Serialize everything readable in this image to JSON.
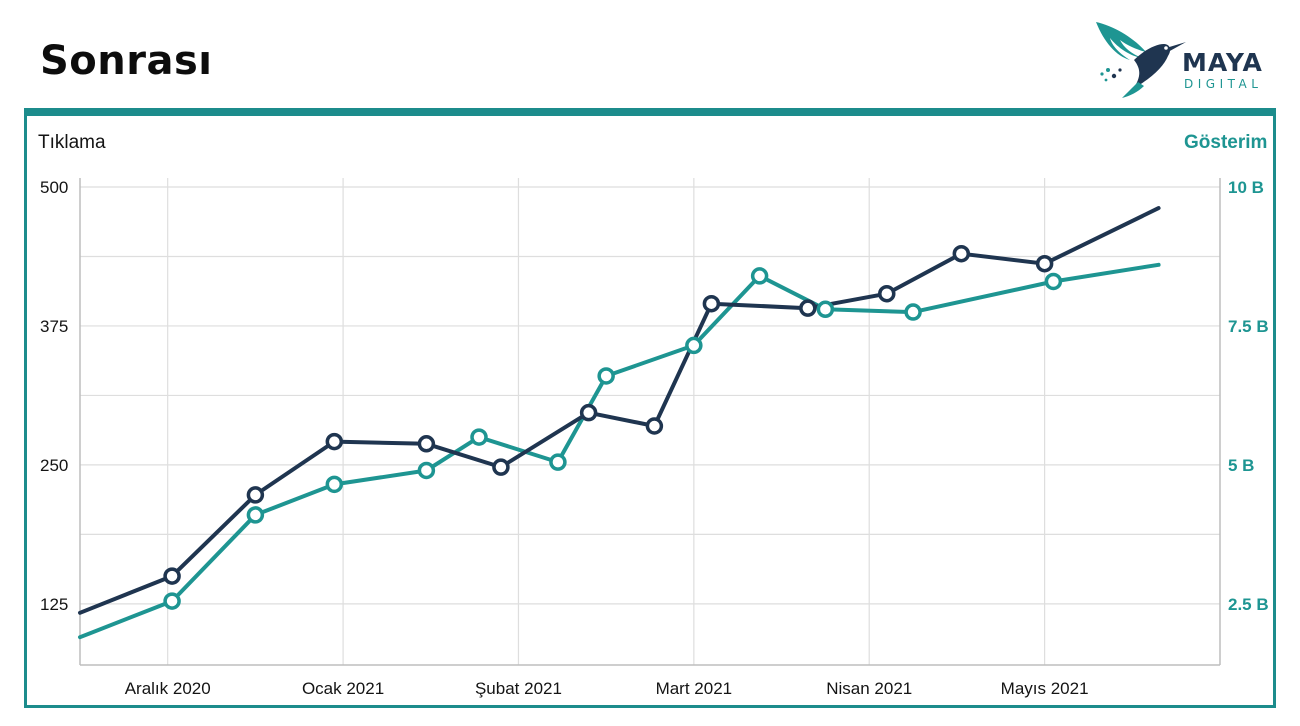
{
  "title": "Sonrası",
  "logo": {
    "name": "MAYA",
    "sub": "DIGITAL",
    "icon": "hummingbird-icon"
  },
  "colors": {
    "clicks": "#1f3550",
    "impressions": "#1e9592",
    "frame": "#1c8c8c",
    "grid": "#dedede"
  },
  "chart_data": {
    "type": "line",
    "ylabel": "Tıklama",
    "y2label": "Gösterim",
    "ylim": [
      70,
      500
    ],
    "y2lim": [
      1.4,
      10
    ],
    "yticks": [
      125,
      250,
      375,
      500
    ],
    "yticklabels": [
      "125",
      "250",
      "375",
      "500"
    ],
    "y2ticks": [
      2.5,
      5,
      7.5,
      10
    ],
    "y2ticklabels": [
      "2.5 B",
      "5 B",
      "7.5 B",
      "10 B"
    ],
    "xticklabels": [
      "Aralık 2020",
      "Ocak 2021",
      "Şubat 2021",
      "Mart 2021",
      "Nisan 2021",
      "Mayıs 2021"
    ],
    "xtickpos": [
      1,
      3,
      5,
      7,
      9,
      11
    ],
    "xlim": [
      0,
      13
    ],
    "grid": true,
    "series": [
      {
        "name": "Tıklama",
        "axis": "left",
        "x": [
          0,
          1.05,
          2,
          2.9,
          3.95,
          4.8,
          5.8,
          6.55,
          7.2,
          8.3,
          9.2,
          10.05,
          11,
          12.3
        ],
        "y": [
          117,
          150,
          223,
          271,
          269,
          248,
          297,
          285,
          395,
          391,
          404,
          440,
          431,
          481
        ],
        "markers": [
          false,
          true,
          true,
          true,
          true,
          true,
          true,
          true,
          true,
          true,
          true,
          true,
          true,
          false
        ]
      },
      {
        "name": "Gösterim",
        "axis": "right",
        "x": [
          0,
          1.05,
          2,
          2.9,
          3.95,
          4.55,
          5.45,
          6.0,
          7.0,
          7.75,
          8.5,
          9.5,
          11.1,
          12.3
        ],
        "y": [
          1.9,
          2.55,
          4.1,
          4.65,
          4.9,
          5.5,
          5.05,
          6.6,
          7.15,
          8.4,
          7.8,
          7.75,
          8.3,
          8.6
        ],
        "markers": [
          false,
          true,
          true,
          true,
          true,
          true,
          true,
          true,
          true,
          true,
          true,
          true,
          true,
          false
        ]
      }
    ]
  }
}
